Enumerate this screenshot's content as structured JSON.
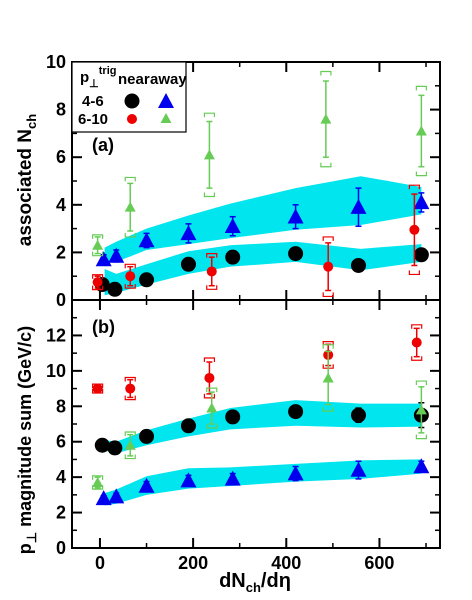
{
  "chart_data": {
    "type": "scatter",
    "xlabel": "dN",
    "xlabel_sub": "ch",
    "xlabel_suffix": "/dη",
    "x_ticks": [
      0,
      200,
      400,
      600
    ],
    "xlim": [
      -60,
      730
    ],
    "legend": {
      "header_main": "p",
      "header_sub": "⊥",
      "header_sup": "trig",
      "col_near": "near",
      "col_away": "away",
      "row1": "4-6",
      "row2": "6-10"
    },
    "colors": {
      "black": "#000000",
      "blue": "#0000ee",
      "red": "#ee0000",
      "green": "#66cc55",
      "band": "#00e5ee"
    },
    "panels": [
      {
        "label": "(a)",
        "ylabel_main": "associated N",
        "ylabel_sub": "ch",
        "ylim": [
          0,
          10
        ],
        "y_ticks": [
          0,
          2,
          4,
          6,
          8,
          10
        ],
        "bands": [
          {
            "x": [
              10,
              35,
              100,
              190,
              280,
              420,
              560,
              690
            ],
            "lo": [
              0.2,
              0.3,
              0.65,
              1.1,
              1.4,
              1.6,
              1.25,
              1.6
            ],
            "hi": [
              1.3,
              1.1,
              1.5,
              2.05,
              2.3,
              2.45,
              2.15,
              2.35
            ]
          },
          {
            "x": [
              10,
              35,
              100,
              190,
              280,
              420,
              560,
              690
            ],
            "lo": [
              1.55,
              1.6,
              2.1,
              2.35,
              2.6,
              2.95,
              3.15,
              3.6
            ],
            "hi": [
              2.2,
              2.45,
              3.0,
              3.55,
              4.05,
              4.7,
              5.2,
              4.75
            ]
          }
        ],
        "series": [
          {
            "name": "4-6 near",
            "marker": "circle",
            "color": "black",
            "x": [
              5,
              32,
              100,
              190,
              285,
              420,
              555,
              690
            ],
            "y": [
              0.65,
              0.45,
              0.85,
              1.5,
              1.8,
              1.95,
              1.45,
              1.9
            ],
            "err": [
              0.15,
              0.12,
              0.15,
              0.2,
              0.2,
              0.25,
              0.25,
              0.2
            ]
          },
          {
            "name": "4-6 away",
            "marker": "triangle",
            "color": "blue",
            "x": [
              8,
              35,
              100,
              190,
              285,
              420,
              555,
              690
            ],
            "y": [
              1.7,
              1.85,
              2.5,
              2.8,
              3.1,
              3.5,
              3.9,
              4.1
            ],
            "err": [
              0.2,
              0.25,
              0.3,
              0.4,
              0.4,
              0.5,
              0.8,
              0.4
            ]
          },
          {
            "name": "6-10 near",
            "marker": "circle",
            "color": "red",
            "x": [
              -5,
              65,
              240,
              490,
              675
            ],
            "y": [
              0.75,
              1.0,
              1.2,
              1.4,
              2.95
            ],
            "err": [
              0.25,
              0.4,
              0.6,
              1.0,
              1.5
            ]
          },
          {
            "name": "6-10 away",
            "marker": "triangle",
            "color": "green",
            "x": [
              -5,
              65,
              235,
              485,
              690
            ],
            "y": [
              2.3,
              3.9,
              6.1,
              7.6,
              7.1
            ],
            "err": [
              0.35,
              1.0,
              1.4,
              1.6,
              1.5
            ]
          }
        ]
      },
      {
        "label": "(b)",
        "ylabel_main": "p",
        "ylabel_sub": "⊥",
        "ylabel_suffix": " magnitude sum (GeV/c)",
        "ylim": [
          0,
          14
        ],
        "y_ticks": [
          0,
          2,
          4,
          6,
          8,
          10,
          12
        ],
        "bands": [
          {
            "x": [
              10,
              35,
              100,
              190,
              280,
              420,
              560,
              690
            ],
            "lo": [
              5.5,
              5.35,
              5.8,
              6.3,
              6.7,
              6.9,
              6.8,
              6.85
            ],
            "hi": [
              6.1,
              6.0,
              6.65,
              7.3,
              7.9,
              8.35,
              8.15,
              8.15
            ]
          },
          {
            "x": [
              10,
              35,
              100,
              190,
              280,
              420,
              560,
              690
            ],
            "lo": [
              2.4,
              2.5,
              3.0,
              3.35,
              3.5,
              3.75,
              3.9,
              4.2
            ],
            "hi": [
              3.1,
              3.3,
              4.05,
              4.5,
              4.55,
              4.75,
              4.95,
              5.0
            ]
          }
        ],
        "series": [
          {
            "name": "4-6 near",
            "marker": "circle",
            "color": "black",
            "x": [
              5,
              32,
              100,
              190,
              285,
              420,
              555,
              690
            ],
            "y": [
              5.8,
              5.65,
              6.3,
              6.9,
              7.4,
              7.7,
              7.5,
              7.5
            ],
            "err": [
              0.15,
              0.15,
              0.2,
              0.25,
              0.25,
              0.3,
              0.4,
              0.7
            ]
          },
          {
            "name": "4-6 away",
            "marker": "triangle",
            "color": "blue",
            "x": [
              8,
              35,
              100,
              190,
              285,
              420,
              555,
              690
            ],
            "y": [
              2.8,
              2.9,
              3.5,
              3.8,
              3.9,
              4.2,
              4.4,
              4.6
            ],
            "err": [
              0.15,
              0.2,
              0.25,
              0.3,
              0.3,
              0.4,
              0.5,
              0.3
            ]
          },
          {
            "name": "6-10 near",
            "marker": "circle",
            "color": "red",
            "x": [
              -5,
              65,
              235,
              490,
              680
            ],
            "y": [
              9.0,
              9.0,
              9.6,
              10.9,
              11.6
            ],
            "err": [
              0.2,
              0.5,
              0.9,
              0.6,
              0.8
            ]
          },
          {
            "name": "6-10 away",
            "marker": "triangle",
            "color": "green",
            "x": [
              -5,
              65,
              240,
              490,
              690
            ],
            "y": [
              3.7,
              5.8,
              7.9,
              9.6,
              7.8
            ],
            "err": [
              0.3,
              0.6,
              0.9,
              1.5,
              1.3
            ]
          }
        ]
      }
    ]
  }
}
